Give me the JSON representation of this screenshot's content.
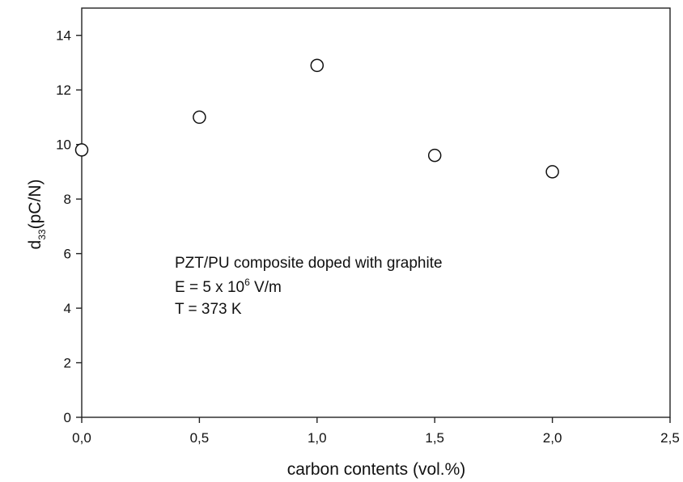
{
  "chart_data": {
    "type": "scatter",
    "x": [
      0.0,
      0.5,
      1.0,
      1.5,
      2.0
    ],
    "y": [
      9.8,
      11.0,
      12.9,
      9.6,
      9.0
    ],
    "xlabel": "carbon contents (vol.%)",
    "ylabel": {
      "main": "d",
      "subscript": "33",
      "unit": "(pC/N)"
    },
    "xlim": [
      0,
      2.5
    ],
    "ylim": [
      0,
      15
    ],
    "xticks": [
      "0,0",
      "0,5",
      "1,0",
      "1,5",
      "2,0",
      "2,5"
    ],
    "xtick_values": [
      0,
      0.5,
      1.0,
      1.5,
      2.0,
      2.5
    ],
    "yticks": [
      "0",
      "2",
      "4",
      "6",
      "8",
      "10",
      "12",
      "14"
    ],
    "ytick_values": [
      0,
      2,
      4,
      6,
      8,
      10,
      12,
      14
    ],
    "grid": false,
    "marker": "open-circle",
    "annotation": {
      "line1": "PZT/PU composite doped with graphite",
      "line2_prefix": "E = 5 x 10",
      "line2_sup": "6",
      "line2_suffix": " V/m",
      "line3": "T = 373 K"
    }
  }
}
